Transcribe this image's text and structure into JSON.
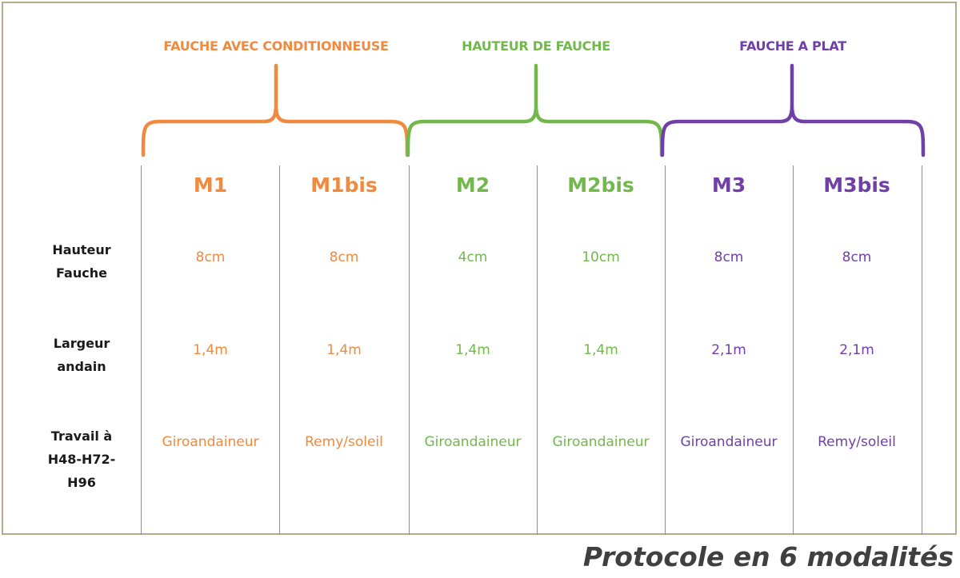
{
  "colors": {
    "orange": "#ef8a3e",
    "green": "#72b84c",
    "purple": "#7040a8"
  },
  "groups": [
    {
      "label": "FAUCHE AVEC CONDITIONNEUSE",
      "color": "orange"
    },
    {
      "label": "HAUTEUR DE FAUCHE",
      "color": "green"
    },
    {
      "label": "FAUCHE A PLAT",
      "color": "purple"
    }
  ],
  "columns": [
    {
      "name": "M1",
      "color": "orange",
      "hauteur": "8cm",
      "largeur": "1,4m",
      "travail": "Giroandaineur"
    },
    {
      "name": "M1bis",
      "color": "orange",
      "hauteur": "8cm",
      "largeur": "1,4m",
      "travail": "Remy/soleil"
    },
    {
      "name": "M2",
      "color": "green",
      "hauteur": "4cm",
      "largeur": "1,4m",
      "travail": "Giroandaineur"
    },
    {
      "name": "M2bis",
      "color": "green",
      "hauteur": "10cm",
      "largeur": "1,4m",
      "travail": "Giroandaineur"
    },
    {
      "name": "M3",
      "color": "purple",
      "hauteur": "8cm",
      "largeur": "2,1m",
      "travail": "Giroandaineur"
    },
    {
      "name": "M3bis",
      "color": "purple",
      "hauteur": "8cm",
      "largeur": "2,1m",
      "travail": "Remy/soleil"
    }
  ],
  "rows": {
    "hauteur": {
      "line1": "Hauteur",
      "line2": "Fauche"
    },
    "largeur": {
      "line1": "Largeur",
      "line2": "andain"
    },
    "travail": {
      "line1": "Travail à",
      "line2": "H48-H72-",
      "line3": "H96"
    }
  },
  "caption": "Protocole en 6 modalités"
}
